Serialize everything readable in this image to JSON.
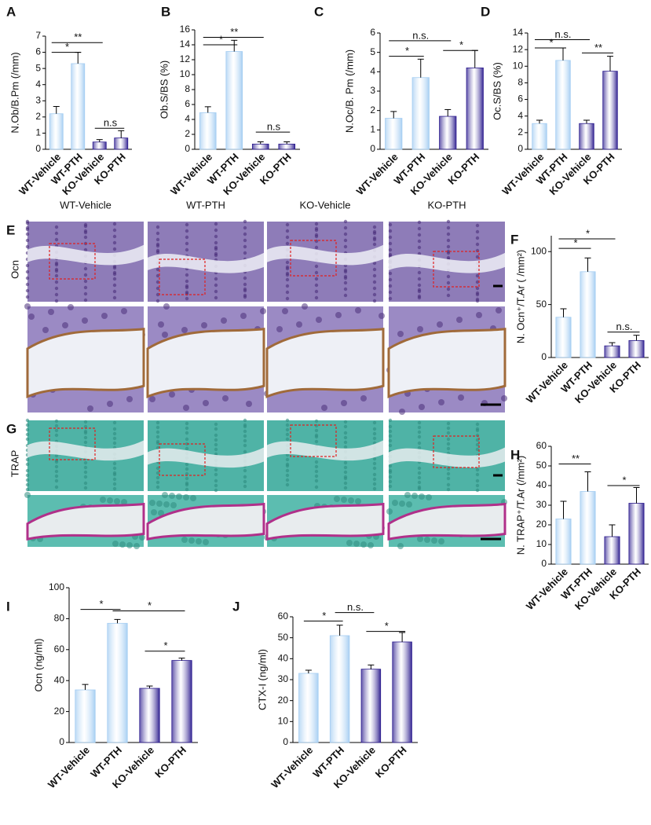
{
  "chart_data": [
    {
      "type": "bar",
      "panel": "A",
      "ylabel": "N.Ob/B.Pm (/mm)",
      "categories": [
        "WT-Vehicle",
        "WT-PTH",
        "KO-Vehicle",
        "KO-PTH"
      ],
      "values": [
        2.2,
        5.3,
        0.45,
        0.7
      ],
      "errors": [
        0.45,
        0.7,
        0.15,
        0.45
      ],
      "colors": [
        "#a4cdf2",
        "#a4cdf2",
        "#2c1c8e",
        "#2c1c8e"
      ],
      "ylim": [
        0,
        7
      ],
      "yticks": [
        0,
        1,
        2,
        3,
        4,
        5,
        6,
        7
      ],
      "annotations": [
        {
          "text": "*",
          "y": 6.0,
          "from": 0,
          "to": 1
        },
        {
          "text": "**",
          "y": 6.6,
          "from": 0,
          "to": 2
        },
        {
          "text": "n.s",
          "y": 1.3,
          "from": 2,
          "to": 3
        }
      ]
    },
    {
      "type": "bar",
      "panel": "B",
      "ylabel": "Ob.S/BS (%)",
      "categories": [
        "WT-Vehicle",
        "WT-PTH",
        "KO-Vehicle",
        "KO-PTH"
      ],
      "values": [
        4.9,
        13.1,
        0.7,
        0.7
      ],
      "errors": [
        0.8,
        1.5,
        0.3,
        0.3
      ],
      "colors": [
        "#a4cdf2",
        "#a4cdf2",
        "#2c1c8e",
        "#2c1c8e"
      ],
      "ylim": [
        0,
        16
      ],
      "yticks": [
        0,
        2,
        4,
        6,
        8,
        10,
        12,
        14,
        16
      ],
      "annotations": [
        {
          "text": "*",
          "y": 14.0,
          "from": 0,
          "to": 1
        },
        {
          "text": "**",
          "y": 15.0,
          "from": 0,
          "to": 2
        },
        {
          "text": "n.s",
          "y": 2.3,
          "from": 2,
          "to": 3
        }
      ]
    },
    {
      "type": "bar",
      "panel": "C",
      "ylabel": "N.Oc/B. Pm (/mm)",
      "categories": [
        "WT-Vehicle",
        "WT-PTH",
        "KO-Vehicle",
        "KO-PTH"
      ],
      "values": [
        1.6,
        3.7,
        1.7,
        4.2
      ],
      "errors": [
        0.35,
        0.95,
        0.35,
        0.9
      ],
      "colors": [
        "#a4cdf2",
        "#a4cdf2",
        "#2c1c8e",
        "#2c1c8e"
      ],
      "ylim": [
        0,
        6
      ],
      "yticks": [
        0,
        1,
        2,
        3,
        4,
        5,
        6
      ],
      "annotations": [
        {
          "text": "*",
          "y": 4.8,
          "from": 0,
          "to": 1
        },
        {
          "text": "n.s.",
          "y": 5.6,
          "from": 0,
          "to": 2
        },
        {
          "text": "*",
          "y": 5.1,
          "from": 2,
          "to": 3
        }
      ]
    },
    {
      "type": "bar",
      "panel": "D",
      "ylabel": "Oc.S/BS (%)",
      "categories": [
        "WT-Vehicle",
        "WT-PTH",
        "KO-Vehicle",
        "KO-PTH"
      ],
      "values": [
        3.1,
        10.7,
        3.1,
        9.4
      ],
      "errors": [
        0.4,
        1.5,
        0.4,
        1.8
      ],
      "colors": [
        "#a4cdf2",
        "#a4cdf2",
        "#2c1c8e",
        "#2c1c8e"
      ],
      "ylim": [
        0,
        14
      ],
      "yticks": [
        0,
        2,
        4,
        6,
        8,
        10,
        12,
        14
      ],
      "annotations": [
        {
          "text": "*",
          "y": 12.2,
          "from": 0,
          "to": 1
        },
        {
          "text": "n.s.",
          "y": 13.2,
          "from": 0,
          "to": 2
        },
        {
          "text": "**",
          "y": 11.6,
          "from": 2,
          "to": 3
        }
      ]
    },
    {
      "type": "bar",
      "panel": "F",
      "ylabel": "N. Ocn⁺/T.Ar ( /mm²)",
      "categories": [
        "WT-Vehicle",
        "WT-PTH",
        "KO-Vehicle",
        "KO-PTH"
      ],
      "values": [
        38,
        81,
        11,
        16
      ],
      "errors": [
        8,
        13,
        3,
        5
      ],
      "colors": [
        "#a4cdf2",
        "#a4cdf2",
        "#2c1c8e",
        "#2c1c8e"
      ],
      "ylim": [
        0,
        115
      ],
      "yticks": [
        0,
        50,
        100
      ],
      "annotations": [
        {
          "text": "*",
          "y": 103,
          "from": 0,
          "to": 1
        },
        {
          "text": "*",
          "y": 112,
          "from": 0,
          "to": 2
        },
        {
          "text": "n.s.",
          "y": 24,
          "from": 2,
          "to": 3
        }
      ]
    },
    {
      "type": "bar",
      "panel": "H",
      "ylabel": "N. TRAP⁺/T.Ar (/mm²)",
      "categories": [
        "WT-Vehicle",
        "WT-PTH",
        "KO-Vehicle",
        "KO-PTH"
      ],
      "values": [
        23,
        37,
        14,
        31
      ],
      "errors": [
        9,
        10,
        6,
        8
      ],
      "colors": [
        "#a4cdf2",
        "#a4cdf2",
        "#2c1c8e",
        "#2c1c8e"
      ],
      "ylim": [
        0,
        60
      ],
      "yticks": [
        0,
        10,
        20,
        30,
        40,
        50,
        60
      ],
      "annotations": [
        {
          "text": "**",
          "y": 51,
          "from": 0,
          "to": 1
        },
        {
          "text": "*",
          "y": 40,
          "from": 2,
          "to": 3
        }
      ]
    },
    {
      "type": "bar",
      "panel": "I",
      "ylabel": "Ocn (ng/ml)",
      "categories": [
        "WT-Vehicle",
        "WT-PTH",
        "KO-Vehicle",
        "KO-PTH"
      ],
      "values": [
        34,
        77,
        35,
        53
      ],
      "errors": [
        3.5,
        2.5,
        1.5,
        1.5
      ],
      "colors": [
        "#a4cdf2",
        "#a4cdf2",
        "#2c1c8e",
        "#2c1c8e"
      ],
      "ylim": [
        0,
        100
      ],
      "yticks": [
        0,
        20,
        40,
        60,
        80,
        100
      ],
      "annotations": [
        {
          "text": "*",
          "y": 86,
          "from": 0,
          "to": 1
        },
        {
          "text": "*",
          "y": 85,
          "from": 1,
          "to": 3
        },
        {
          "text": "*",
          "y": 59,
          "from": 2,
          "to": 3
        }
      ]
    },
    {
      "type": "bar",
      "panel": "J",
      "ylabel": "CTX-I (ng/ml)",
      "categories": [
        "WT-Vehicle",
        "WT-PTH",
        "KO-Vehicle",
        "KO-PTH"
      ],
      "values": [
        33,
        51,
        35,
        48
      ],
      "errors": [
        1.5,
        5,
        2,
        4.5
      ],
      "colors": [
        "#a4cdf2",
        "#a4cdf2",
        "#2c1c8e",
        "#2c1c8e"
      ],
      "ylim": [
        0,
        60
      ],
      "yticks": [
        0,
        10,
        20,
        30,
        40,
        50,
        60
      ],
      "annotations": [
        {
          "text": "*",
          "y": 58,
          "from": 0,
          "to": 1
        },
        {
          "text": "n.s.",
          "y": 62,
          "from": 1,
          "to": 2
        },
        {
          "text": "*",
          "y": 53,
          "from": 2,
          "to": 3
        }
      ]
    }
  ],
  "image_panels": [
    {
      "panel": "E",
      "row_label": "Ocn",
      "columns": [
        "WT-Vehicle",
        "WT-PTH",
        "KO-Vehicle",
        "KO-PTH"
      ]
    },
    {
      "panel": "G",
      "row_label": "TRAP"
    }
  ]
}
